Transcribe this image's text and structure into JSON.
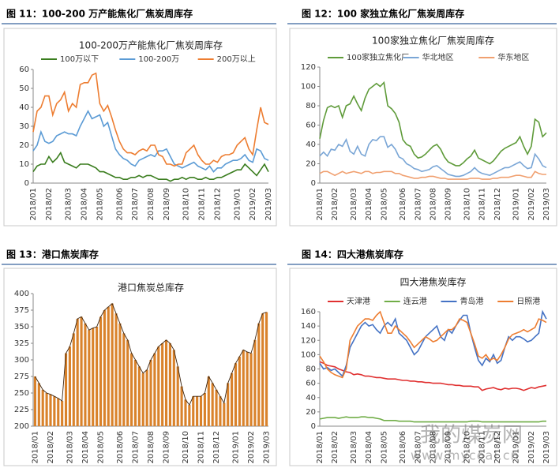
{
  "watermark": {
    "name": "我的煤炭网",
    "url": "www.mycoal.cn"
  },
  "chart_data": [
    {
      "type": "line",
      "caption": "图 11：100-200 万产能焦化厂焦炭周库存",
      "title": "100-200万产能焦化厂焦炭周库存",
      "legend": "top",
      "grid": false,
      "categories": [
        "2018/01",
        null,
        null,
        null,
        "2018/02",
        null,
        null,
        null,
        null,
        "2018/03",
        null,
        null,
        null,
        "2018/04",
        null,
        null,
        null,
        "2018/05",
        null,
        null,
        null,
        null,
        "2018/06",
        null,
        null,
        null,
        "2018/07",
        null,
        null,
        null,
        "2018/08",
        null,
        null,
        null,
        "2018/09",
        null,
        null,
        null,
        null,
        "2018/10",
        null,
        null,
        null,
        "2018/11",
        null,
        null,
        null,
        "2018/12",
        null,
        null,
        null,
        null,
        "2019/01",
        null,
        null,
        null,
        "2019/02",
        null,
        null,
        null,
        "2019/03"
      ],
      "ylim": [
        0,
        60
      ],
      "yticks": [
        0,
        10,
        20,
        30,
        40,
        50,
        60
      ],
      "series": [
        {
          "name": "100万以下",
          "color": "#3a7d1e",
          "values": [
            6,
            9,
            10,
            10,
            14,
            11,
            13,
            16,
            11,
            10,
            9,
            8,
            10,
            10,
            10,
            9,
            8,
            6,
            6,
            5,
            4,
            3,
            3,
            2,
            2,
            3,
            3,
            4,
            3,
            4,
            4,
            3,
            2,
            2,
            2,
            1,
            2,
            2,
            3,
            2,
            3,
            3,
            2,
            2,
            3,
            2,
            2,
            3,
            3,
            4,
            5,
            6,
            7,
            7,
            10,
            8,
            6,
            4,
            7,
            10,
            6
          ]
        },
        {
          "name": "100-200万",
          "color": "#5b9bd5",
          "values": [
            17,
            20,
            27,
            22,
            21,
            22,
            25,
            26,
            27,
            26,
            26,
            25,
            30,
            34,
            38,
            34,
            35,
            36,
            30,
            32,
            25,
            18,
            15,
            13,
            12,
            10,
            9,
            12,
            13,
            14,
            15,
            14,
            17,
            17,
            18,
            14,
            10,
            9,
            8,
            9,
            10,
            11,
            9,
            8,
            7,
            9,
            6,
            8,
            8,
            10,
            11,
            12,
            12,
            13,
            15,
            12,
            11,
            18,
            17,
            13,
            12
          ]
        },
        {
          "name": "200万以上",
          "color": "#ed7d31",
          "values": [
            27,
            38,
            40,
            46,
            46,
            36,
            42,
            44,
            48,
            38,
            42,
            40,
            52,
            53,
            53,
            57,
            58,
            42,
            38,
            41,
            35,
            28,
            22,
            18,
            16,
            16,
            15,
            17,
            18,
            17,
            20,
            20,
            15,
            14,
            10,
            10,
            9,
            10,
            10,
            16,
            18,
            20,
            15,
            12,
            10,
            10,
            12,
            11,
            14,
            15,
            15,
            16,
            20,
            22,
            24,
            18,
            15,
            28,
            40,
            32,
            31
          ]
        }
      ]
    },
    {
      "type": "line",
      "caption": "图 12：100 家独立焦化厂焦炭周库存",
      "title": "100家独立焦化厂焦炭周库存",
      "legend": "top",
      "grid": false,
      "categories": [
        "2018/01",
        null,
        null,
        null,
        "2018/02",
        null,
        null,
        null,
        null,
        "2018/03",
        null,
        null,
        null,
        "2018/04",
        null,
        null,
        null,
        "2018/05",
        null,
        null,
        null,
        null,
        "2018/06",
        null,
        null,
        null,
        "2018/07",
        null,
        null,
        null,
        "2018/08",
        null,
        null,
        null,
        "2018/09",
        null,
        null,
        null,
        null,
        "2018/10",
        null,
        null,
        null,
        "2018/11",
        null,
        null,
        null,
        "2018/12",
        null,
        null,
        null,
        null,
        "2019/01",
        null,
        null,
        null,
        "2019/02",
        null,
        null,
        null,
        "2019/03"
      ],
      "ylim": [
        0,
        120
      ],
      "yticks": [
        0,
        20,
        40,
        60,
        80,
        100,
        120
      ],
      "series": [
        {
          "name": "100家独立焦化厂",
          "color": "#5f9b3a",
          "values": [
            46,
            65,
            78,
            80,
            78,
            80,
            68,
            80,
            82,
            90,
            82,
            75,
            88,
            97,
            100,
            103,
            100,
            104,
            80,
            77,
            72,
            63,
            45,
            40,
            38,
            30,
            26,
            27,
            30,
            34,
            38,
            40,
            35,
            27,
            22,
            20,
            18,
            18,
            21,
            25,
            28,
            34,
            26,
            24,
            22,
            20,
            23,
            28,
            33,
            36,
            38,
            40,
            42,
            48,
            38,
            30,
            38,
            66,
            63,
            48,
            52
          ]
        },
        {
          "name": "华北地区",
          "color": "#7aa6d6",
          "values": [
            28,
            32,
            28,
            35,
            34,
            40,
            38,
            45,
            33,
            30,
            38,
            30,
            28,
            40,
            45,
            44,
            48,
            48,
            37,
            40,
            35,
            27,
            25,
            20,
            18,
            15,
            14,
            12,
            13,
            14,
            17,
            18,
            15,
            12,
            9,
            8,
            7,
            7,
            8,
            10,
            12,
            16,
            12,
            10,
            9,
            8,
            10,
            12,
            14,
            16,
            16,
            18,
            20,
            22,
            18,
            15,
            16,
            30,
            25,
            18,
            16
          ]
        },
        {
          "name": "华东地区",
          "color": "#f0a070",
          "values": [
            10,
            12,
            12,
            10,
            8,
            10,
            12,
            10,
            11,
            12,
            11,
            10,
            12,
            12,
            10,
            11,
            11,
            12,
            12,
            12,
            10,
            10,
            8,
            7,
            6,
            5,
            5,
            6,
            6,
            7,
            7,
            6,
            5,
            5,
            4,
            4,
            4,
            4,
            4,
            4,
            5,
            5,
            5,
            4,
            4,
            4,
            5,
            5,
            6,
            6,
            6,
            7,
            8,
            8,
            7,
            6,
            6,
            12,
            10,
            9,
            9
          ]
        }
      ]
    },
    {
      "type": "bar",
      "caption": "图 13：港口焦炭库存",
      "title": "港口焦炭总库存",
      "grid": false,
      "color": "#d9822b",
      "categories": [
        "2018/01",
        null,
        null,
        null,
        "2018/02",
        null,
        null,
        null,
        null,
        "2018/03",
        null,
        null,
        null,
        "2018/04",
        null,
        null,
        null,
        "2018/05",
        null,
        null,
        null,
        null,
        "2018/06",
        null,
        null,
        null,
        "2018/07",
        null,
        null,
        null,
        "2018/08",
        null,
        null,
        null,
        "2018/09",
        null,
        null,
        null,
        null,
        "2018/10",
        null,
        null,
        null,
        "2018/11",
        null,
        null,
        null,
        "2018/12",
        null,
        null,
        null,
        null,
        "2019/01",
        null,
        null,
        null,
        "2019/02",
        null,
        null,
        null,
        "2019/03"
      ],
      "ylim": [
        200,
        400
      ],
      "yticks": [
        200,
        225,
        250,
        275,
        300,
        325,
        350,
        375,
        400
      ],
      "values": [
        275,
        265,
        255,
        250,
        248,
        245,
        242,
        238,
        310,
        320,
        340,
        362,
        365,
        355,
        345,
        348,
        350,
        365,
        375,
        380,
        385,
        370,
        355,
        340,
        330,
        310,
        300,
        290,
        280,
        285,
        300,
        310,
        320,
        325,
        330,
        325,
        315,
        290,
        260,
        240,
        232,
        245,
        245,
        245,
        250,
        275,
        265,
        255,
        245,
        235,
        265,
        280,
        295,
        305,
        315,
        312,
        310,
        330,
        355,
        370,
        372
      ]
    },
    {
      "type": "line",
      "caption": "图 14：四大港焦炭库存",
      "title": "四大港焦炭库存",
      "legend": "top",
      "grid": false,
      "categories": [
        "2018/01",
        null,
        null,
        null,
        "2018/02",
        null,
        null,
        null,
        null,
        "2018/03",
        null,
        null,
        null,
        "2018/04",
        null,
        null,
        null,
        "2018/05",
        null,
        null,
        null,
        null,
        "2018/06",
        null,
        null,
        null,
        "2018/07",
        null,
        null,
        null,
        "2018/08",
        null,
        null,
        null,
        "2018/09",
        null,
        null,
        null,
        null,
        "2018/10",
        null,
        null,
        null,
        "2018/11",
        null,
        null,
        null,
        "2018/12",
        null,
        null,
        null,
        null,
        "2019/01",
        null,
        null,
        null,
        "2019/02",
        null,
        null,
        null,
        "2019/03"
      ],
      "ylim": [
        0,
        160
      ],
      "yticks": [
        0,
        20,
        40,
        60,
        80,
        100,
        120,
        140,
        160
      ],
      "series": [
        {
          "name": "天津港",
          "color": "#e03030",
          "values": [
            90,
            88,
            85,
            84,
            83,
            80,
            78,
            76,
            75,
            72,
            73,
            72,
            70,
            70,
            69,
            68,
            68,
            67,
            66,
            66,
            66,
            65,
            64,
            64,
            63,
            63,
            62,
            62,
            61,
            61,
            60,
            60,
            60,
            59,
            58,
            58,
            57,
            57,
            56,
            56,
            56,
            55,
            55,
            50,
            52,
            53,
            54,
            52,
            51,
            53,
            52,
            53,
            53,
            52,
            50,
            52,
            54,
            53,
            55,
            56,
            57
          ]
        },
        {
          "name": "连云港",
          "color": "#70ad47",
          "values": [
            10,
            11,
            12,
            12,
            12,
            11,
            12,
            13,
            12,
            12,
            12,
            13,
            13,
            12,
            12,
            11,
            10,
            8,
            8,
            8,
            8,
            7,
            7,
            7,
            7,
            6,
            6,
            6,
            6,
            6,
            6,
            6,
            6,
            6,
            6,
            6,
            6,
            6,
            6,
            6,
            7,
            7,
            7,
            6,
            6,
            6,
            6,
            6,
            6,
            6,
            6,
            6,
            6,
            6,
            6,
            6,
            6,
            6,
            6,
            7,
            7
          ]
        },
        {
          "name": "青岛港",
          "color": "#4472c4",
          "values": [
            88,
            80,
            82,
            78,
            80,
            75,
            70,
            85,
            110,
            120,
            130,
            140,
            145,
            140,
            142,
            135,
            130,
            140,
            145,
            140,
            150,
            130,
            125,
            120,
            110,
            100,
            105,
            115,
            125,
            130,
            135,
            140,
            125,
            120,
            135,
            130,
            140,
            148,
            155,
            155,
            130,
            110,
            92,
            85,
            95,
            90,
            100,
            88,
            92,
            110,
            125,
            120,
            125,
            125,
            122,
            118,
            120,
            125,
            130,
            160,
            150
          ]
        },
        {
          "name": "日照港",
          "color": "#ed7d31",
          "values": [
            98,
            90,
            80,
            75,
            72,
            70,
            68,
            80,
            120,
            130,
            140,
            145,
            150,
            150,
            148,
            155,
            160,
            145,
            130,
            130,
            140,
            135,
            130,
            125,
            118,
            110,
            115,
            120,
            125,
            122,
            118,
            120,
            125,
            130,
            135,
            135,
            140,
            150,
            148,
            145,
            130,
            115,
            98,
            95,
            100,
            92,
            95,
            92,
            100,
            110,
            122,
            128,
            130,
            132,
            135,
            132,
            135,
            138,
            150,
            148,
            145
          ]
        }
      ]
    }
  ]
}
